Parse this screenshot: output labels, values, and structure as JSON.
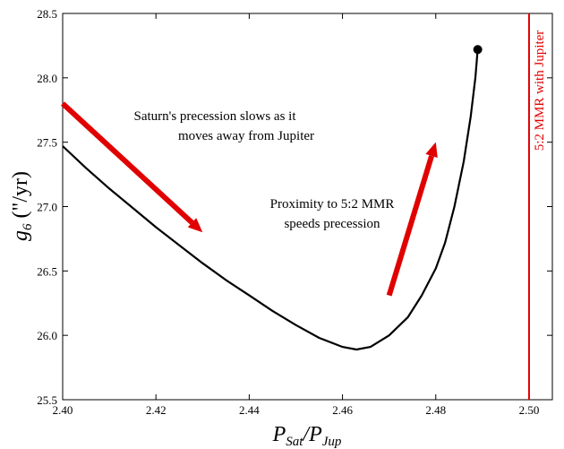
{
  "chart_data": {
    "type": "line",
    "xlabel": "P_Sat/P_Jup",
    "ylabel": "g_6 (\"/yr)",
    "xlim": [
      2.4,
      2.505
    ],
    "ylim": [
      25.5,
      28.5
    ],
    "xticks": [
      "2.40",
      "2.42",
      "2.44",
      "2.46",
      "2.48",
      "2.50"
    ],
    "yticks": [
      "25.5",
      "26.0",
      "26.5",
      "27.0",
      "27.5",
      "28.0",
      "28.5"
    ],
    "grid": false,
    "legend": "none",
    "series": [
      {
        "color": "#000000",
        "x": [
          2.4,
          2.405,
          2.41,
          2.415,
          2.42,
          2.425,
          2.43,
          2.435,
          2.44,
          2.445,
          2.45,
          2.455,
          2.46,
          2.463,
          2.466,
          2.47,
          2.474,
          2.477,
          2.48,
          2.482,
          2.484,
          2.486,
          2.4875,
          2.4885,
          2.489
        ],
        "y": [
          27.47,
          27.3,
          27.14,
          26.99,
          26.84,
          26.7,
          26.56,
          26.43,
          26.31,
          26.19,
          26.08,
          25.98,
          25.91,
          25.89,
          25.91,
          26.0,
          26.14,
          26.31,
          26.52,
          26.72,
          27.0,
          27.35,
          27.7,
          28.0,
          28.22
        ]
      }
    ],
    "endpoint_marker": {
      "x": 2.489,
      "y": 28.22
    },
    "vertical_line": {
      "x": 2.5,
      "label": "5:2 MMR with Jupiter",
      "color": "#e00000"
    },
    "annotations": [
      {
        "lines": [
          "Saturn's precession slows as it",
          "moves away from Jupiter"
        ]
      },
      {
        "lines": [
          "Proximity to 5:2 MMR",
          "speeds precession"
        ]
      }
    ],
    "arrows": [
      {
        "color": "#e00000",
        "from": [
          2.4,
          27.8
        ],
        "to": [
          2.43,
          26.8
        ]
      },
      {
        "color": "#e00000",
        "from": [
          2.47,
          26.31
        ],
        "to": [
          2.48,
          27.5
        ]
      }
    ]
  }
}
